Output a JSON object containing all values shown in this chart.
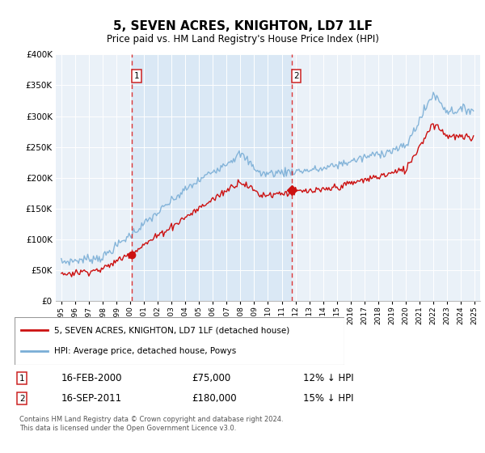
{
  "title": "5, SEVEN ACRES, KNIGHTON, LD7 1LF",
  "subtitle": "Price paid vs. HM Land Registry's House Price Index (HPI)",
  "legend_line1": "5, SEVEN ACRES, KNIGHTON, LD7 1LF (detached house)",
  "legend_line2": "HPI: Average price, detached house, Powys",
  "transaction1_date": "16-FEB-2000",
  "transaction1_price": 75000,
  "transaction1_note": "12% ↓ HPI",
  "transaction2_date": "16-SEP-2011",
  "transaction2_price": 180000,
  "transaction2_note": "15% ↓ HPI",
  "copyright": "Contains HM Land Registry data © Crown copyright and database right 2024.\nThis data is licensed under the Open Government Licence v3.0.",
  "hpi_color": "#7aaed6",
  "price_color": "#cc1111",
  "vline_color": "#dd2222",
  "shade_color": "#dae8f5",
  "plot_bg": "#eaf1f8",
  "ylim": [
    0,
    400000
  ],
  "yticks": [
    0,
    50000,
    100000,
    150000,
    200000,
    250000,
    300000,
    350000,
    400000
  ],
  "t1_year": 2000.12,
  "t2_year": 2011.71
}
